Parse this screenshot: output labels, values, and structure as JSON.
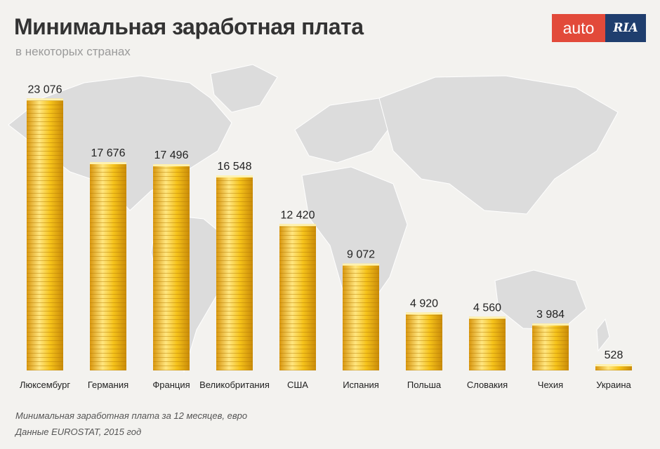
{
  "header": {
    "title": "Минимальная заработная плата",
    "subtitle": "в некоторых странах"
  },
  "logo": {
    "part1": "auto",
    "part2": "RIA",
    "color_part1": "#e24a3a",
    "color_part2": "#1f3e6e"
  },
  "notes": {
    "line1": "Минимальная заработная плата за 12 месяцев, евро",
    "line2": "Данные EUROSTAT, 2015 год"
  },
  "colors": {
    "coin_light": "#ffe680",
    "coin_mid": "#f5c21a",
    "coin_dark": "#d9960c",
    "map": "#dcdcdc"
  },
  "chart_data": {
    "type": "bar",
    "categories": [
      "Люксембург",
      "Германия",
      "Франция",
      "Великобритания",
      "США",
      "Испания",
      "Польша",
      "Словакия",
      "Чехия",
      "Украина"
    ],
    "values": [
      23076,
      17676,
      17496,
      16548,
      12420,
      9072,
      4920,
      4560,
      3984,
      528
    ],
    "value_labels": [
      "23 076",
      "17 676",
      "17 496",
      "16 548",
      "12 420",
      "9 072",
      "4 920",
      "4 560",
      "3 984",
      "528"
    ],
    "title": "Минимальная заработная плата",
    "ylim": [
      0,
      25000
    ],
    "grid": false,
    "legend": "none"
  }
}
